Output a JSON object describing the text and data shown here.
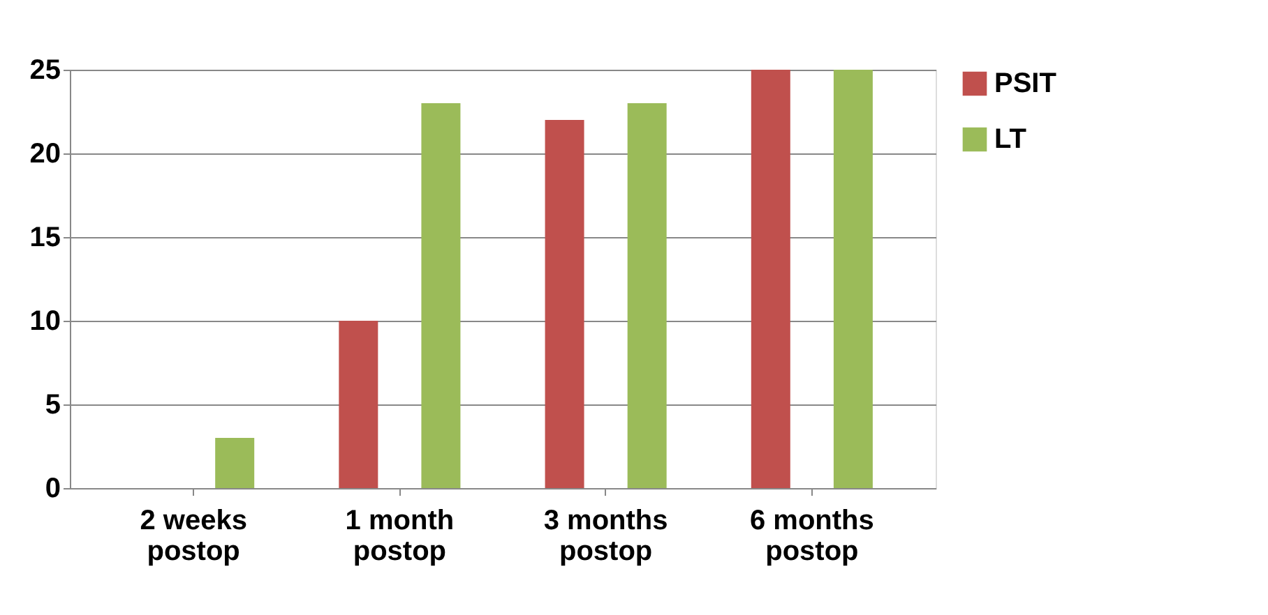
{
  "chart_data": {
    "type": "bar",
    "categories": [
      "2 weeks postop",
      "1 month postop",
      "3 months postop",
      "6 months postop"
    ],
    "series": [
      {
        "name": "PSIT",
        "color": "#c0504d",
        "values": [
          0,
          10,
          22,
          25
        ]
      },
      {
        "name": "LT",
        "color": "#9bbb59",
        "values": [
          3,
          23,
          23,
          25
        ]
      }
    ],
    "ylim": [
      0,
      25
    ],
    "yticks": [
      0,
      5,
      10,
      15,
      20,
      25
    ],
    "grid": "y",
    "legend": "right"
  }
}
